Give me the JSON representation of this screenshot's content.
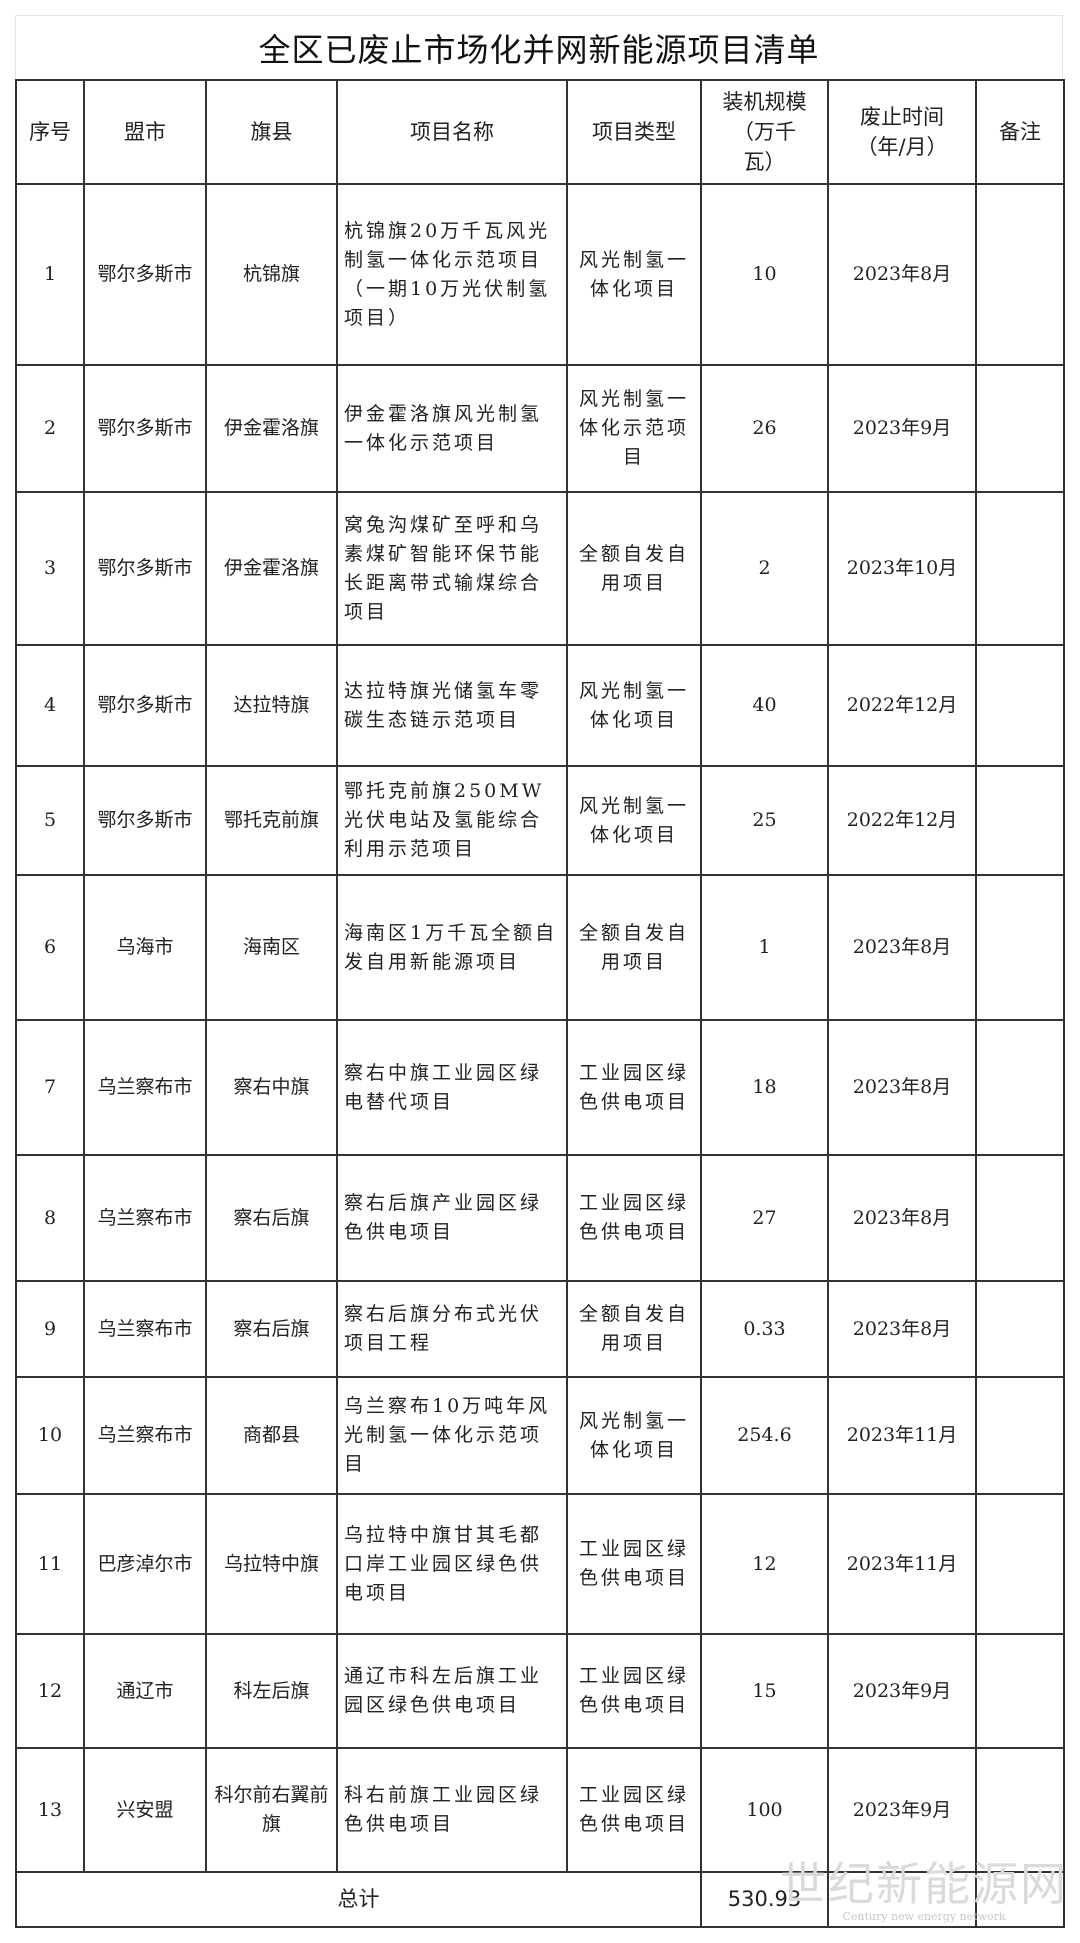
{
  "title": "全区已废止市场化并网新能源项目清单",
  "headers": {
    "seq": "序号",
    "league_city": "盟市",
    "banner_county": "旗县",
    "project_name": "项目名称",
    "project_type": "项目类型",
    "capacity": "装机规模（万千瓦）",
    "abolish_time": "废止时间（年/月）",
    "remarks": "备注"
  },
  "rows": [
    {
      "seq": "1",
      "city": "鄂尔多斯市",
      "county": "杭锦旗",
      "name": "杭锦旗20万千瓦风光制氢一体化示范项目（一期10万光伏制氢项目）",
      "type": "风光制氢一体化项目",
      "capacity": "10",
      "time": "2023年8月",
      "remark": ""
    },
    {
      "seq": "2",
      "city": "鄂尔多斯市",
      "county": "伊金霍洛旗",
      "name": "伊金霍洛旗风光制氢一体化示范项目",
      "type": "风光制氢一体化示范项目",
      "capacity": "26",
      "time": "2023年9月",
      "remark": ""
    },
    {
      "seq": "3",
      "city": "鄂尔多斯市",
      "county": "伊金霍洛旗",
      "name": "窝兔沟煤矿至呼和乌素煤矿智能环保节能长距离带式输煤综合项目",
      "type": "全额自发自用项目",
      "capacity": "2",
      "time": "2023年10月",
      "remark": ""
    },
    {
      "seq": "4",
      "city": "鄂尔多斯市",
      "county": "达拉特旗",
      "name": "达拉特旗光储氢车零碳生态链示范项目",
      "type": "风光制氢一体化项目",
      "capacity": "40",
      "time": "2022年12月",
      "remark": ""
    },
    {
      "seq": "5",
      "city": "鄂尔多斯市",
      "county": "鄂托克前旗",
      "name": "鄂托克前旗250MW光伏电站及氢能综合利用示范项目",
      "type": "风光制氢一体化项目",
      "capacity": "25",
      "time": "2022年12月",
      "remark": ""
    },
    {
      "seq": "6",
      "city": "乌海市",
      "county": "海南区",
      "name": "海南区1万千瓦全额自发自用新能源项目",
      "type": "全额自发自用项目",
      "capacity": "1",
      "time": "2023年8月",
      "remark": ""
    },
    {
      "seq": "7",
      "city": "乌兰察布市",
      "county": "察右中旗",
      "name": "察右中旗工业园区绿电替代项目",
      "type": "工业园区绿色供电项目",
      "capacity": "18",
      "time": "2023年8月",
      "remark": ""
    },
    {
      "seq": "8",
      "city": "乌兰察布市",
      "county": "察右后旗",
      "name": "察右后旗产业园区绿色供电项目",
      "type": "工业园区绿色供电项目",
      "capacity": "27",
      "time": "2023年8月",
      "remark": ""
    },
    {
      "seq": "9",
      "city": "乌兰察布市",
      "county": "察右后旗",
      "name": "察右后旗分布式光伏项目工程",
      "type": "全额自发自用项目",
      "capacity": "0.33",
      "time": "2023年8月",
      "remark": ""
    },
    {
      "seq": "10",
      "city": "乌兰察布市",
      "county": "商都县",
      "name": "乌兰察布10万吨年风光制氢一体化示范项目",
      "type": "风光制氢一体化项目",
      "capacity": "254.6",
      "time": "2023年11月",
      "remark": ""
    },
    {
      "seq": "11",
      "city": "巴彦淖尔市",
      "county": "乌拉特中旗",
      "name": "乌拉特中旗甘其毛都口岸工业园区绿色供电项目",
      "type": "工业园区绿色供电项目",
      "capacity": "12",
      "time": "2023年11月",
      "remark": ""
    },
    {
      "seq": "12",
      "city": "通辽市",
      "county": "科左后旗",
      "name": "通辽市科左后旗工业园区绿色供电项目",
      "type": "工业园区绿色供电项目",
      "capacity": "15",
      "time": "2023年9月",
      "remark": ""
    },
    {
      "seq": "13",
      "city": "兴安盟",
      "county": "科尔前右翼前旗",
      "name": "科右前旗工业园区绿色供电项目",
      "type": "工业园区绿色供电项目",
      "capacity": "100",
      "time": "2023年9月",
      "remark": ""
    }
  ],
  "total": {
    "label": "总计",
    "capacity": "530.93"
  },
  "watermark": {
    "main": "世纪新能源网",
    "sub": "Century new energy network"
  }
}
